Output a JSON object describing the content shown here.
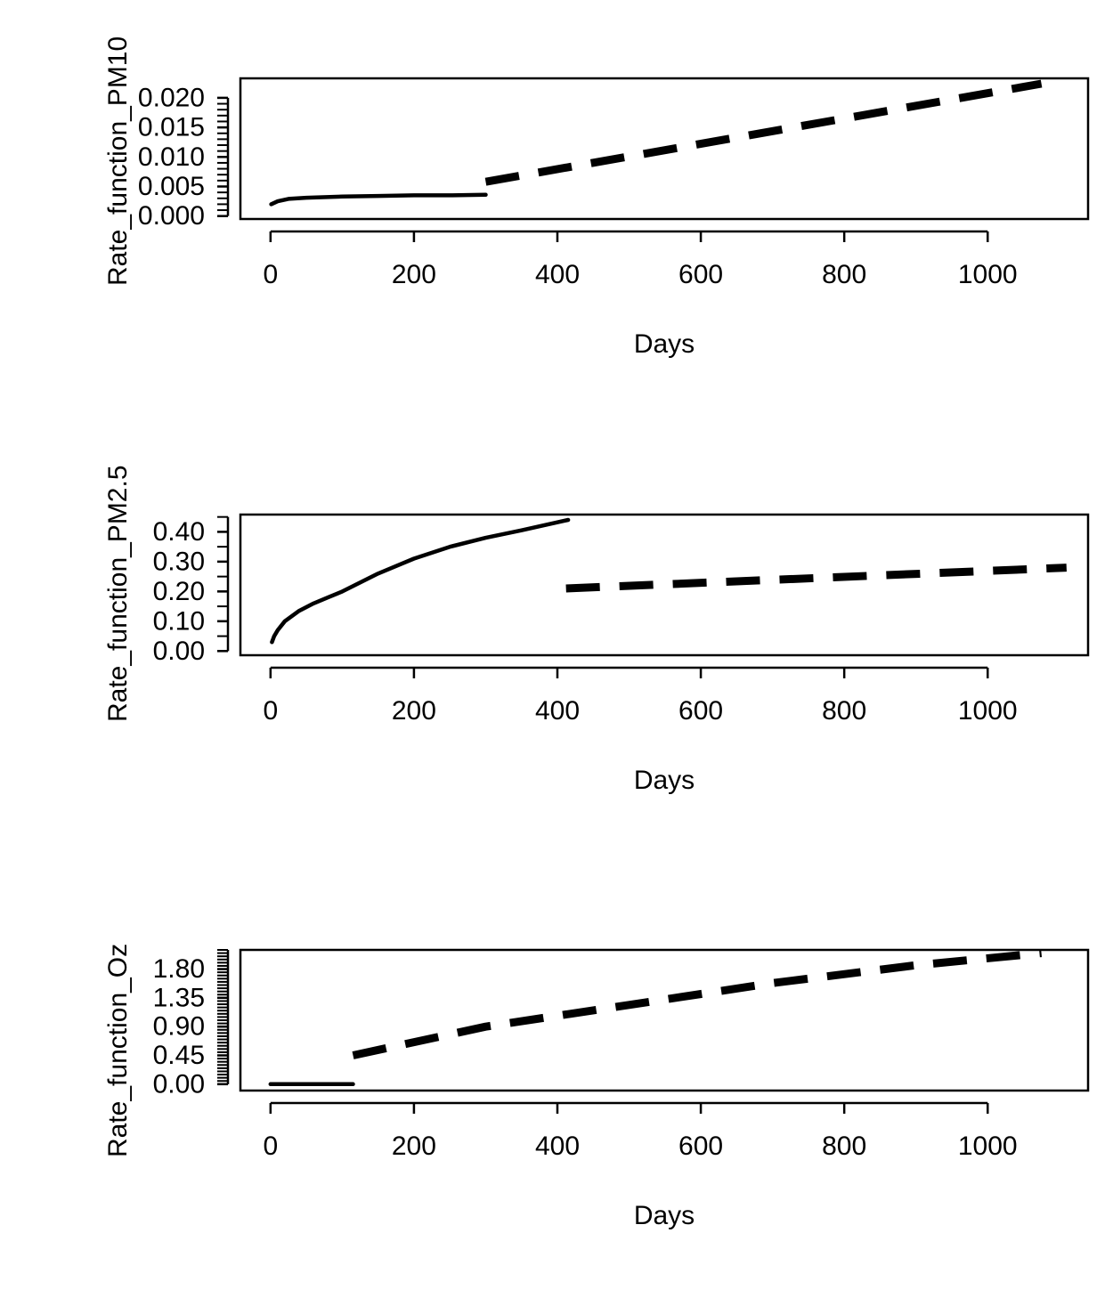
{
  "chart_data": [
    {
      "type": "line",
      "title": "",
      "xlabel": "Days",
      "ylabel": "Rate_function_PM10",
      "xlim": [
        -42,
        1140
      ],
      "ylim": [
        -0.0005,
        0.0233
      ],
      "x_ticks": [
        "0",
        "200",
        "400",
        "600",
        "800",
        "1000"
      ],
      "y_ticks": [
        "0.000",
        "0.005",
        "0.010",
        "0.015",
        "0.020"
      ],
      "y_tick_values": [
        0,
        0.005,
        0.01,
        0.015,
        0.02
      ],
      "y_minor_step": 0.001,
      "y_minor_range": [
        0,
        0.02
      ],
      "grid": false,
      "series": [
        {
          "style": "solid",
          "x": [
            1,
            10,
            25,
            50,
            100,
            150,
            200,
            250,
            300
          ],
          "y": [
            0.002,
            0.0025,
            0.0029,
            0.0031,
            0.0033,
            0.0034,
            0.0035,
            0.0035,
            0.0036
          ]
        },
        {
          "style": "dashed",
          "x": [
            300,
            1075
          ],
          "y": [
            0.0058,
            0.0224
          ]
        }
      ]
    },
    {
      "type": "line",
      "title": "",
      "xlabel": "Days",
      "ylabel": "Rate_function_PM2.5",
      "xlim": [
        -42,
        1140
      ],
      "ylim": [
        -0.014,
        0.458
      ],
      "x_ticks": [
        "0",
        "200",
        "400",
        "600",
        "800",
        "1000"
      ],
      "y_ticks": [
        "0.00",
        "0.10",
        "0.20",
        "0.30",
        "0.40"
      ],
      "y_tick_values": [
        0,
        0.1,
        0.2,
        0.3,
        0.4
      ],
      "y_minor_step": 0.05,
      "y_minor_range": [
        0,
        0.45
      ],
      "grid": false,
      "series": [
        {
          "style": "solid",
          "x": [
            2,
            5,
            10,
            20,
            40,
            60,
            80,
            100,
            150,
            200,
            250,
            300,
            350,
            415
          ],
          "y": [
            0.03,
            0.05,
            0.07,
            0.1,
            0.135,
            0.16,
            0.18,
            0.2,
            0.26,
            0.31,
            0.35,
            0.38,
            0.405,
            0.44
          ]
        },
        {
          "style": "dashed",
          "x": [
            412,
            1110
          ],
          "y": [
            0.21,
            0.28
          ]
        }
      ]
    },
    {
      "type": "line",
      "title": "",
      "xlabel": "Days",
      "ylabel": "Rate_function_Oz",
      "xlim": [
        -42,
        1140
      ],
      "ylim": [
        -0.1,
        2.1
      ],
      "x_ticks": [
        "0",
        "200",
        "400",
        "600",
        "800",
        "1000"
      ],
      "y_ticks": [
        "0.00",
        "0.45",
        "0.90",
        "1.35",
        "1.80"
      ],
      "y_tick_values": [
        0,
        0.45,
        0.9,
        1.35,
        1.8
      ],
      "y_minor_step": 0.05,
      "y_minor_range": [
        0,
        2.1
      ],
      "grid": false,
      "series": [
        {
          "style": "solid",
          "x": [
            0,
            115
          ],
          "y": [
            0.0,
            0.0
          ]
        },
        {
          "style": "dashed",
          "x": [
            115,
            300,
            500,
            700,
            900,
            1075
          ],
          "y": [
            0.45,
            0.9,
            1.24,
            1.58,
            1.86,
            2.05
          ]
        }
      ]
    }
  ]
}
